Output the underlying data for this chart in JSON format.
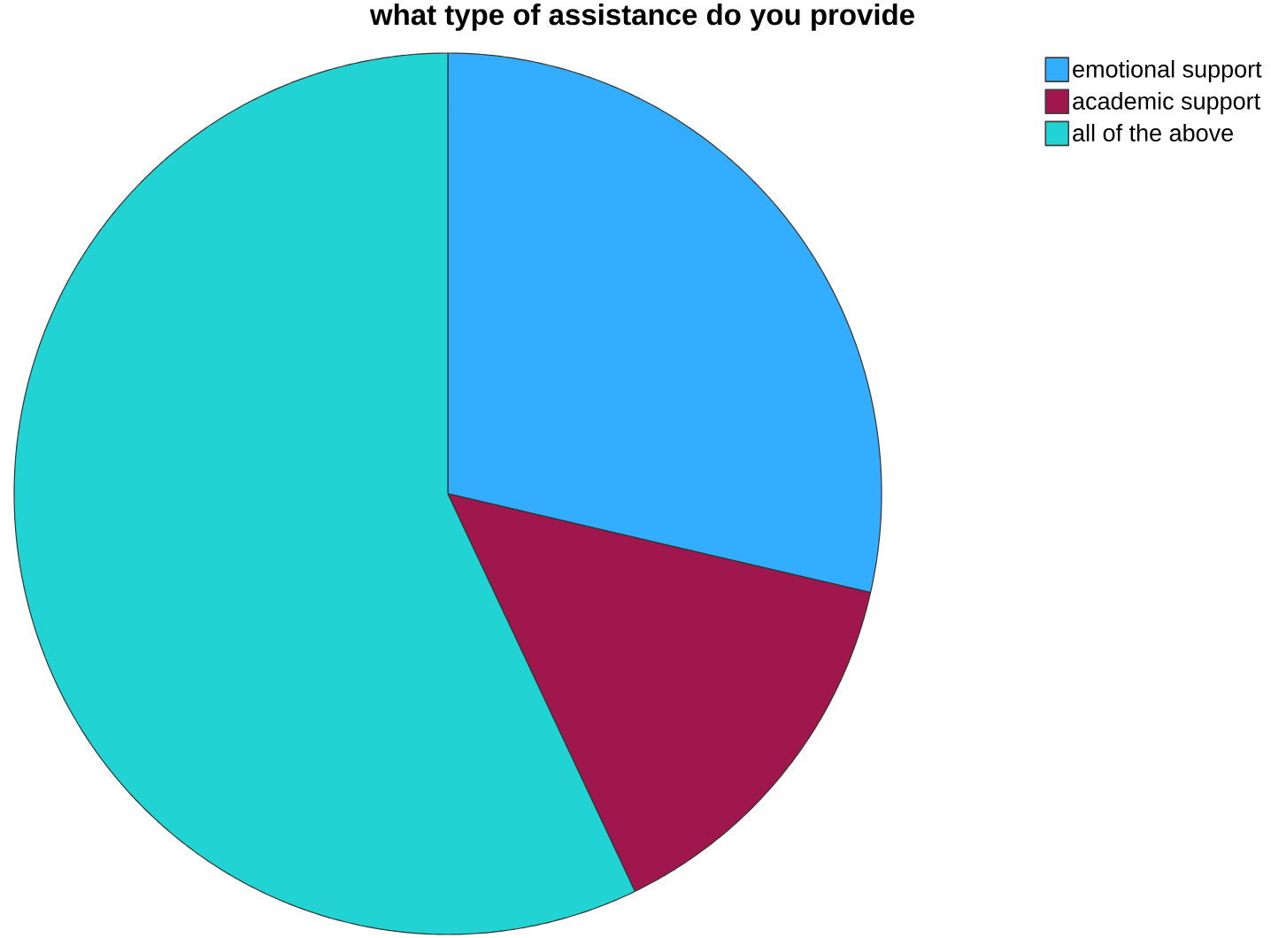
{
  "chart_data": {
    "type": "pie",
    "title": "what type of assistance do you provide",
    "categories": [
      "emotional support",
      "academic support",
      "all of the above"
    ],
    "values": [
      28.6,
      14.3,
      57.1
    ],
    "colors": [
      "#33adff",
      "#a0174e",
      "#21d3d3"
    ],
    "legend": "top right"
  }
}
